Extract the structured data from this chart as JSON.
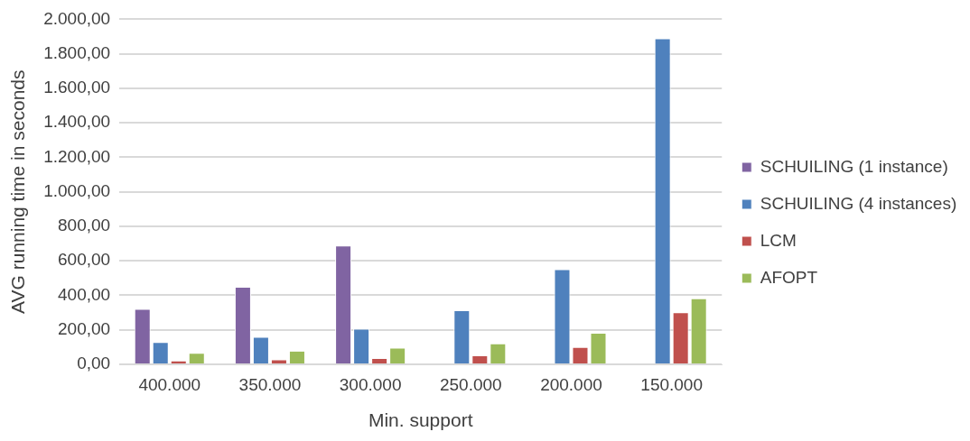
{
  "chart_data": {
    "type": "bar",
    "xlabel": "Min. support",
    "ylabel": "AVG running time in seconds",
    "categories": [
      "400.000",
      "350.000",
      "300.000",
      "250.000",
      "200.000",
      "150.000"
    ],
    "series": [
      {
        "name": "SCHUILING (1 instance)",
        "color": "#8064a2",
        "values": [
          321,
          450,
          689,
          null,
          null,
          null
        ]
      },
      {
        "name": "SCHUILING (4 instances)",
        "color": "#4f81bd",
        "values": [
          130,
          159,
          206,
          314,
          551,
          1890
        ]
      },
      {
        "name": "LCM",
        "color": "#c0504d",
        "values": [
          22,
          29,
          36,
          52,
          100,
          302
        ]
      },
      {
        "name": "AFOPT",
        "color": "#9bbb59",
        "values": [
          67,
          79,
          97,
          122,
          183,
          383
        ]
      }
    ],
    "ylim": [
      0,
      2000
    ],
    "yticks": [
      {
        "value": 0,
        "label": "0,00"
      },
      {
        "value": 200,
        "label": "200,00"
      },
      {
        "value": 400,
        "label": "400,00"
      },
      {
        "value": 600,
        "label": "600,00"
      },
      {
        "value": 800,
        "label": "800,00"
      },
      {
        "value": 1000,
        "label": "1.000,00"
      },
      {
        "value": 1200,
        "label": "1.200,00"
      },
      {
        "value": 1400,
        "label": "1.400,00"
      },
      {
        "value": 1600,
        "label": "1.600,00"
      },
      {
        "value": 1800,
        "label": "1.800,00"
      },
      {
        "value": 2000,
        "label": "2.000,00"
      }
    ],
    "grid": "y",
    "legend": "right"
  }
}
